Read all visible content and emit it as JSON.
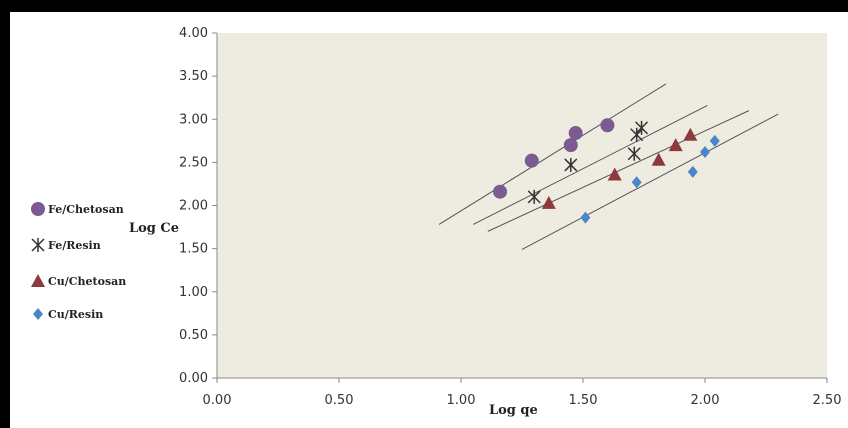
{
  "chart_data": {
    "type": "scatter",
    "title": "",
    "xlabel": "Log qe",
    "ylabel": "Log Ce",
    "xlim": [
      0,
      2.5
    ],
    "ylim": [
      0,
      4
    ],
    "xticks": [
      "0.00",
      "0.50",
      "1.00",
      "1.50",
      "2.00",
      "2.50"
    ],
    "yticks": [
      "0.00",
      "0.50",
      "1.00",
      "1.50",
      "2.00",
      "2.50",
      "3.00",
      "3.50",
      "4.00"
    ],
    "grid": false,
    "legend_position": "left",
    "plot_background": "#eeece1",
    "series": [
      {
        "name": "Fe/Chetosan",
        "marker": "circle",
        "color": "#7b5b91",
        "points": [
          [
            1.16,
            2.16
          ],
          [
            1.29,
            2.52
          ],
          [
            1.45,
            2.7
          ],
          [
            1.47,
            2.84
          ],
          [
            1.6,
            2.93
          ]
        ],
        "trendline": [
          [
            0.91,
            1.78
          ],
          [
            1.84,
            3.41
          ]
        ]
      },
      {
        "name": "Fe/Resin",
        "marker": "star",
        "color": "#333333",
        "points": [
          [
            1.3,
            2.1
          ],
          [
            1.45,
            2.47
          ],
          [
            1.71,
            2.6
          ],
          [
            1.72,
            2.82
          ],
          [
            1.74,
            2.9
          ]
        ],
        "trendline": [
          [
            1.05,
            1.78
          ],
          [
            2.01,
            3.16
          ]
        ]
      },
      {
        "name": "Cu/Chetosan",
        "marker": "triangle",
        "color": "#8c3a3e",
        "points": [
          [
            1.36,
            2.03
          ],
          [
            1.63,
            2.36
          ],
          [
            1.81,
            2.53
          ],
          [
            1.88,
            2.7
          ],
          [
            1.94,
            2.82
          ]
        ],
        "trendline": [
          [
            1.11,
            1.7
          ],
          [
            2.18,
            3.1
          ]
        ]
      },
      {
        "name": "Cu/Resin",
        "marker": "diamond",
        "color": "#4a86c8",
        "points": [
          [
            1.51,
            1.86
          ],
          [
            1.72,
            2.27
          ],
          [
            1.95,
            2.39
          ],
          [
            2.0,
            2.62
          ],
          [
            2.04,
            2.75
          ]
        ],
        "trendline": [
          [
            1.25,
            1.49
          ],
          [
            2.3,
            3.06
          ]
        ]
      }
    ]
  }
}
